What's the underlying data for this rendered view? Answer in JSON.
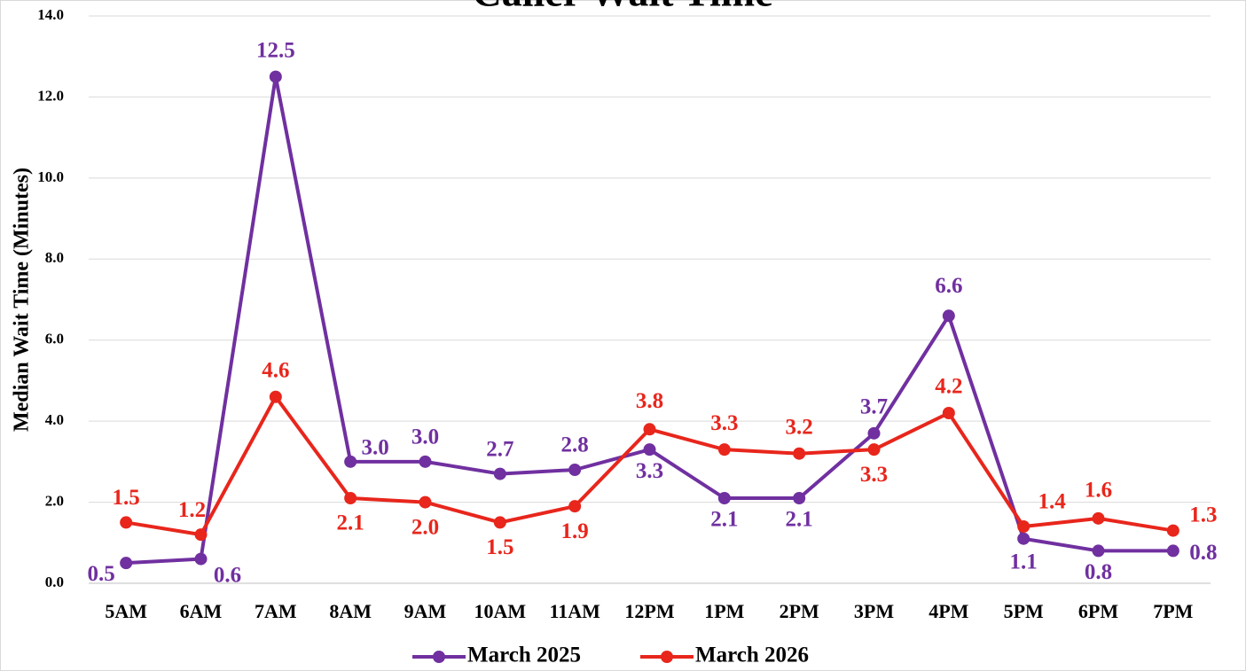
{
  "chart_data": {
    "type": "line",
    "title": "Caller Wait Time",
    "y_label": "Median Wait Time (Minutes)",
    "categories": [
      "5AM",
      "6AM",
      "7AM",
      "8AM",
      "9AM",
      "10AM",
      "11AM",
      "12PM",
      "1PM",
      "2PM",
      "3PM",
      "4PM",
      "5PM",
      "6PM",
      "7PM"
    ],
    "series": [
      {
        "name": "March 2025",
        "color": "#7030a0",
        "values": [
          0.5,
          0.6,
          12.5,
          3.0,
          3.0,
          2.7,
          2.8,
          3.3,
          2.1,
          2.1,
          3.7,
          6.6,
          1.1,
          0.8,
          0.8
        ],
        "value_labels": [
          "0.5",
          "0.6",
          "12.5",
          "3.0",
          "3.0",
          "2.7",
          "2.8",
          "3.3",
          "2.1",
          "2.1",
          "3.7",
          "6.6",
          "1.1",
          "0.8",
          "0.8"
        ]
      },
      {
        "name": "March 2026",
        "color": "#e8261c",
        "values": [
          1.5,
          1.2,
          4.6,
          2.1,
          2.0,
          1.5,
          1.9,
          3.8,
          3.3,
          3.2,
          3.3,
          4.2,
          1.4,
          1.6,
          1.3
        ],
        "value_labels": [
          "1.5",
          "1.2",
          "4.6",
          "2.1",
          "2.0",
          "1.5",
          "1.9",
          "3.8",
          "3.3",
          "3.2",
          "3.3",
          "4.2",
          "1.4",
          "1.6",
          "1.3"
        ]
      }
    ],
    "ylim": [
      0,
      14
    ],
    "yticks": [
      {
        "value": 0,
        "label": "0.0"
      },
      {
        "value": 2,
        "label": "2.0"
      },
      {
        "value": 4,
        "label": "4.0"
      },
      {
        "value": 6,
        "label": "6.0"
      },
      {
        "value": 8,
        "label": "8.0"
      },
      {
        "value": 10,
        "label": "10.0"
      },
      {
        "value": 12,
        "label": "12.0"
      },
      {
        "value": 14,
        "label": "14.0"
      }
    ],
    "grid": true,
    "legend": "bottom"
  }
}
